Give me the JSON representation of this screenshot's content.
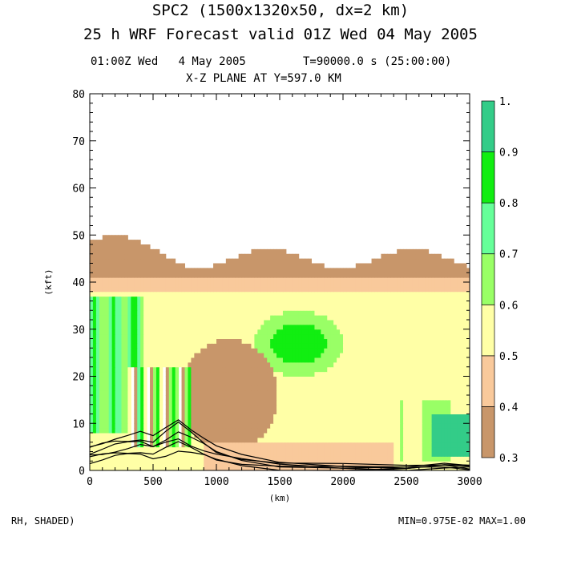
{
  "header": {
    "title_line1": "SPC2 (1500x1320x50, dx=2 km)",
    "title_line2": "25 h WRF Forecast valid 01Z Wed 04 May 2005",
    "time_left": "01:00Z Wed   4 May 2005",
    "time_right": "T=90000.0 s (25:00:00)",
    "plane": "X-Z PLANE AT Y=597.0 KM"
  },
  "footer": {
    "field": "RH, SHADED)",
    "minmax": "MIN=0.975E-02 MAX=1.00"
  },
  "chart_data": {
    "type": "heatmap",
    "title": "X-Z PLANE AT Y=597.0 KM",
    "xlabel": "(km)",
    "ylabel": "(kft)",
    "xlim": [
      0,
      3000
    ],
    "ylim": [
      0,
      80
    ],
    "x_ticks": [
      "0",
      "500",
      "1000",
      "1500",
      "2000",
      "2500",
      "3000"
    ],
    "y_ticks": [
      "0",
      "10",
      "20",
      "30",
      "40",
      "50",
      "60",
      "70",
      "80"
    ],
    "colorbar": {
      "levels": [
        0.3,
        0.4,
        0.5,
        0.6,
        0.7,
        0.8,
        0.9,
        1.0
      ],
      "labels": [
        "0.3",
        "0.4",
        "0.5",
        "0.6",
        "0.7",
        "0.8",
        "0.9",
        "1."
      ],
      "colors": [
        "#c8966a",
        "#f9c99b",
        "#ffffa6",
        "#99ff66",
        "#66ff99",
        "#11ee11",
        "#33cc88"
      ]
    },
    "rh_field_description_regions": [
      {
        "x": [
          0,
          3000
        ],
        "z": [
          41,
          48
        ],
        "rh": 0.35
      },
      {
        "x": [
          0,
          3000
        ],
        "z": [
          35,
          41
        ],
        "rh": 0.45
      },
      {
        "x": [
          0,
          400
        ],
        "z": [
          15,
          36
        ],
        "rh": 0.72
      },
      {
        "x": [
          1150,
          2200
        ],
        "z": [
          17,
          38
        ],
        "rh": 0.65
      },
      {
        "x": [
          2500,
          3000
        ],
        "z": [
          2,
          18
        ],
        "rh": 0.6
      },
      {
        "x": [
          800,
          1600
        ],
        "z": [
          5,
          28
        ],
        "rh": 0.35
      }
    ],
    "terrain_contours_x": [
      0,
      100,
      200,
      300,
      400,
      500,
      600,
      700,
      800,
      900,
      1000,
      1200,
      1500,
      2000,
      2500,
      2800,
      3000
    ],
    "terrain_contours_z": [
      5,
      6,
      7,
      7.5,
      8,
      7,
      9,
      11,
      9,
      7,
      5,
      3,
      1.5,
      1,
      0.8,
      1.5,
      1
    ]
  }
}
